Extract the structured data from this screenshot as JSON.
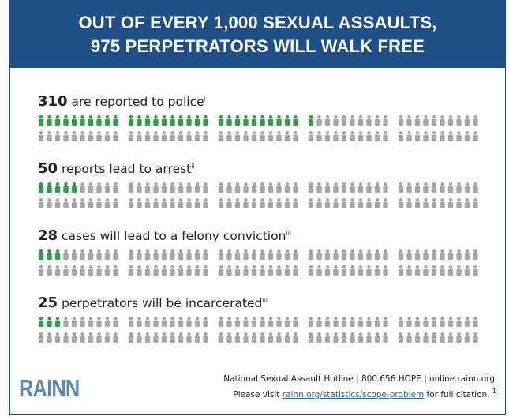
{
  "header": {
    "line1": "OUT OF EVERY 1,000 SEXUAL ASSAULTS,",
    "line2": "975 PERPETRATORS WILL WALK FREE"
  },
  "colors": {
    "header_bg": "#1e4f86",
    "highlight": "#2e9e4a",
    "rest": "#a6a6a6",
    "logo": "#5b86b8",
    "link": "#2a62a8"
  },
  "chart_data": {
    "type": "pictogram",
    "total_per_row": 1000,
    "rows": [
      {
        "value": 310,
        "text": "are reported to police",
        "note": "i"
      },
      {
        "value": 50,
        "text": "reports lead to arrest",
        "note": "ii"
      },
      {
        "value": 28,
        "text": "cases will lead to a felony conviction",
        "note": "iii"
      },
      {
        "value": 25,
        "text": "perpetrators will be incarcerated",
        "note": "iii"
      }
    ]
  },
  "footer": {
    "logo": "RAINN",
    "hotline": "National Sexual Assault Hotline | 800.656.HOPE | online.rainn.org",
    "visit_prefix": "Please visit ",
    "visit_link": "rainn.org/statistics/scope-problem",
    "visit_suffix": " for full citation.",
    "visit_sup": "1"
  }
}
